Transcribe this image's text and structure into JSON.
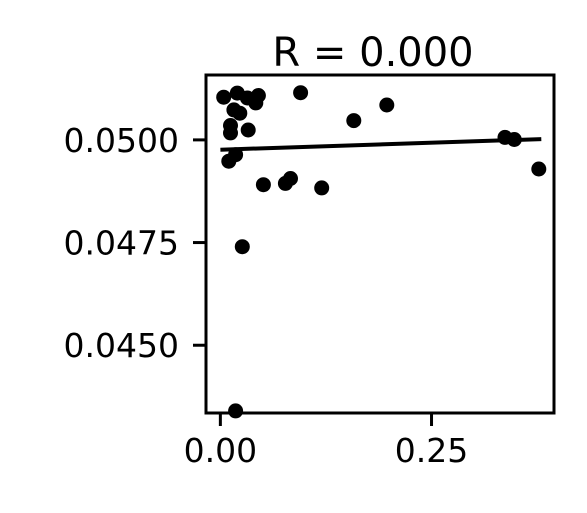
{
  "chart_data": {
    "type": "scatter",
    "title": "R = 0.000",
    "xlabel": "",
    "ylabel": "",
    "xlim": [
      -0.017,
      0.395
    ],
    "ylim": [
      0.04335,
      0.05158
    ],
    "xticks": [
      0.0,
      0.25
    ],
    "xtick_labels": [
      "0.00",
      "0.25"
    ],
    "yticks": [
      0.045,
      0.0475,
      0.05
    ],
    "ytick_labels": [
      "0.0450",
      "0.0475",
      "0.0500"
    ],
    "grid": false,
    "colors": {
      "points": "#000000",
      "line": "#000000",
      "axes": "#000000"
    },
    "points": [
      {
        "x": 0.004,
        "y": 0.05104
      },
      {
        "x": 0.02,
        "y": 0.05114
      },
      {
        "x": 0.032,
        "y": 0.05102
      },
      {
        "x": 0.045,
        "y": 0.05108
      },
      {
        "x": 0.095,
        "y": 0.05115
      },
      {
        "x": 0.197,
        "y": 0.05085
      },
      {
        "x": 0.158,
        "y": 0.05047
      },
      {
        "x": 0.042,
        "y": 0.0509
      },
      {
        "x": 0.016,
        "y": 0.05073
      },
      {
        "x": 0.023,
        "y": 0.05065
      },
      {
        "x": 0.012,
        "y": 0.05035
      },
      {
        "x": 0.033,
        "y": 0.05024
      },
      {
        "x": 0.012,
        "y": 0.05017
      },
      {
        "x": 0.018,
        "y": 0.04964
      },
      {
        "x": 0.01,
        "y": 0.04948
      },
      {
        "x": 0.051,
        "y": 0.04891
      },
      {
        "x": 0.077,
        "y": 0.04894
      },
      {
        "x": 0.083,
        "y": 0.04906
      },
      {
        "x": 0.12,
        "y": 0.04883
      },
      {
        "x": 0.337,
        "y": 0.05006
      },
      {
        "x": 0.348,
        "y": 0.05001
      },
      {
        "x": 0.377,
        "y": 0.04929
      },
      {
        "x": 0.026,
        "y": 0.0474
      },
      {
        "x": 0.018,
        "y": 0.0434
      }
    ],
    "fit_line": {
      "x": [
        0.0,
        0.38
      ],
      "y": [
        0.04976,
        0.05002
      ]
    }
  }
}
